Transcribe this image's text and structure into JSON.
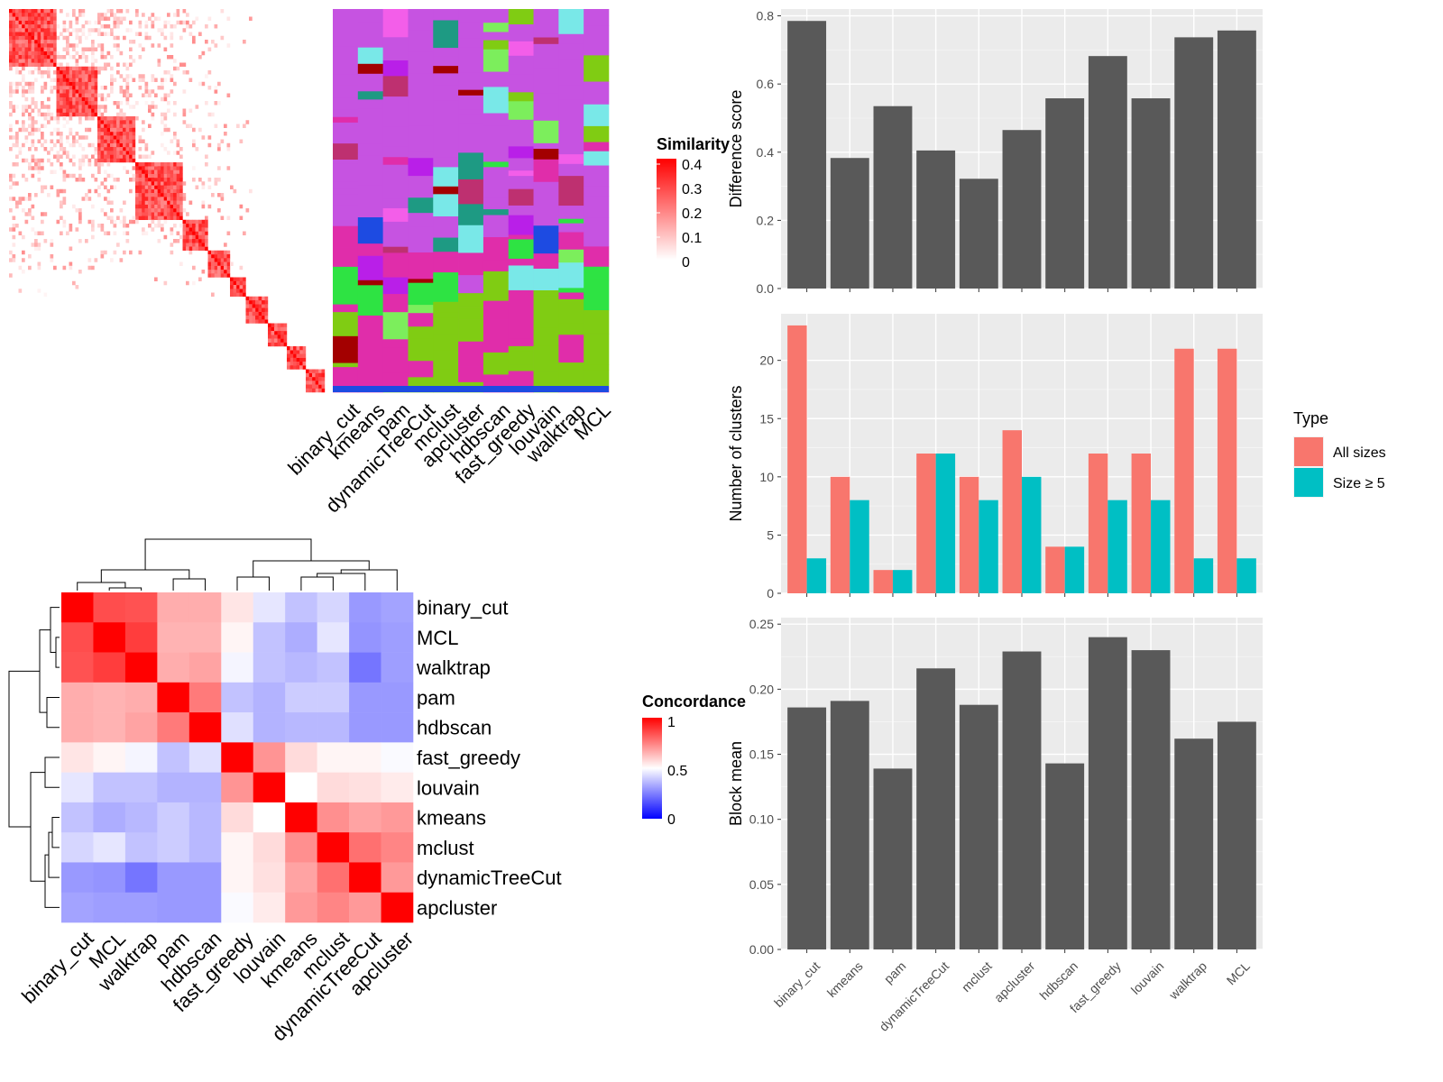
{
  "methods": [
    "binary_cut",
    "kmeans",
    "pam",
    "dynamicTreeCut",
    "mclust",
    "apcluster",
    "hdbscan",
    "fast_greedy",
    "louvain",
    "walktrap",
    "MCL"
  ],
  "similarity_legend": {
    "title": "Similarity",
    "ticks": [
      "0.4",
      "0.3",
      "0.2",
      "0.1",
      "0"
    ]
  },
  "concordance_legend": {
    "title": "Concordance",
    "ticks": [
      "1",
      "0.5",
      "0"
    ]
  },
  "colors": {
    "panel_bg": "#ebebeb",
    "bar": "#595959",
    "all_sizes": "#f8766d",
    "size5": "#00bfc4",
    "heat_high": "#ff0000",
    "heat_mid": "#ffffff",
    "heat_low": "#0000ff"
  },
  "chart_data": [
    {
      "type": "heatmap",
      "name": "similarity_matrix",
      "description_values": "term similarity matrix (symmetric), values 0 to 0.4",
      "value_range": [
        0,
        0.4
      ],
      "legend_title": "Similarity"
    },
    {
      "type": "heatmap",
      "name": "cluster_assignment",
      "columns": [
        "binary_cut",
        "kmeans",
        "pam",
        "dynamicTreeCut",
        "mclust",
        "apcluster",
        "hdbscan",
        "fast_greedy",
        "louvain",
        "walktrap",
        "MCL"
      ]
    },
    {
      "type": "heatmap",
      "name": "concordance",
      "rows": [
        "binary_cut",
        "MCL",
        "walktrap",
        "pam",
        "hdbscan",
        "fast_greedy",
        "louvain",
        "kmeans",
        "mclust",
        "dynamicTreeCut",
        "apcluster"
      ],
      "columns": [
        "binary_cut",
        "MCL",
        "walktrap",
        "pam",
        "hdbscan",
        "fast_greedy",
        "louvain",
        "kmeans",
        "mclust",
        "dynamicTreeCut",
        "apcluster"
      ],
      "values": [
        [
          1.0,
          0.85,
          0.84,
          0.66,
          0.66,
          0.55,
          0.45,
          0.38,
          0.42,
          0.3,
          0.32
        ],
        [
          0.85,
          1.0,
          0.88,
          0.65,
          0.65,
          0.52,
          0.38,
          0.34,
          0.45,
          0.29,
          0.31
        ],
        [
          0.84,
          0.88,
          1.0,
          0.66,
          0.68,
          0.48,
          0.38,
          0.36,
          0.38,
          0.23,
          0.31
        ],
        [
          0.66,
          0.65,
          0.66,
          1.0,
          0.76,
          0.38,
          0.35,
          0.4,
          0.4,
          0.3,
          0.3
        ],
        [
          0.66,
          0.65,
          0.68,
          0.76,
          1.0,
          0.44,
          0.35,
          0.36,
          0.36,
          0.3,
          0.3
        ],
        [
          0.55,
          0.52,
          0.48,
          0.38,
          0.44,
          1.0,
          0.71,
          0.57,
          0.52,
          0.52,
          0.49
        ],
        [
          0.45,
          0.38,
          0.38,
          0.35,
          0.35,
          0.71,
          1.0,
          0.5,
          0.57,
          0.56,
          0.54
        ],
        [
          0.38,
          0.34,
          0.36,
          0.4,
          0.36,
          0.57,
          0.5,
          1.0,
          0.72,
          0.68,
          0.7
        ],
        [
          0.42,
          0.45,
          0.38,
          0.4,
          0.36,
          0.52,
          0.57,
          0.72,
          1.0,
          0.78,
          0.74
        ],
        [
          0.3,
          0.29,
          0.23,
          0.3,
          0.3,
          0.52,
          0.56,
          0.68,
          0.78,
          1.0,
          0.7
        ],
        [
          0.32,
          0.31,
          0.31,
          0.3,
          0.3,
          0.49,
          0.54,
          0.7,
          0.74,
          0.7,
          1.0
        ]
      ],
      "legend_title": "Concordance",
      "value_range": [
        0,
        1
      ]
    },
    {
      "type": "bar",
      "name": "difference_score",
      "categories": [
        "binary_cut",
        "kmeans",
        "pam",
        "dynamicTreeCut",
        "mclust",
        "apcluster",
        "hdbscan",
        "fast_greedy",
        "louvain",
        "walktrap",
        "MCL"
      ],
      "values": [
        0.785,
        0.383,
        0.535,
        0.405,
        0.322,
        0.465,
        0.558,
        0.682,
        0.558,
        0.737,
        0.757
      ],
      "ylabel": "Difference score",
      "ylim": [
        0,
        0.82
      ],
      "yticks": [
        "0.0",
        "0.2",
        "0.4",
        "0.6",
        "0.8"
      ]
    },
    {
      "type": "bar",
      "name": "number_of_clusters",
      "categories": [
        "binary_cut",
        "kmeans",
        "pam",
        "dynamicTreeCut",
        "mclust",
        "apcluster",
        "hdbscan",
        "fast_greedy",
        "louvain",
        "walktrap",
        "MCL"
      ],
      "series": [
        {
          "name": "All sizes",
          "values": [
            23,
            10,
            2,
            12,
            10,
            14,
            4,
            12,
            12,
            21,
            21
          ]
        },
        {
          "name": "Size ≥ 5",
          "values": [
            3,
            8,
            2,
            12,
            8,
            10,
            4,
            8,
            8,
            3,
            3
          ]
        }
      ],
      "ylabel": "Number of clusters",
      "ylim": [
        0,
        24
      ],
      "yticks": [
        "0",
        "5",
        "10",
        "15",
        "20"
      ],
      "legend_title": "Type",
      "legend_position": "right"
    },
    {
      "type": "bar",
      "name": "block_mean",
      "categories": [
        "binary_cut",
        "kmeans",
        "pam",
        "dynamicTreeCut",
        "mclust",
        "apcluster",
        "hdbscan",
        "fast_greedy",
        "louvain",
        "walktrap",
        "MCL"
      ],
      "values": [
        0.186,
        0.191,
        0.139,
        0.216,
        0.188,
        0.229,
        0.143,
        0.24,
        0.23,
        0.162,
        0.175
      ],
      "ylabel": "Block mean",
      "ylim": [
        0,
        0.255
      ],
      "yticks": [
        "0.00",
        "0.05",
        "0.10",
        "0.15",
        "0.20",
        "0.25"
      ]
    }
  ]
}
